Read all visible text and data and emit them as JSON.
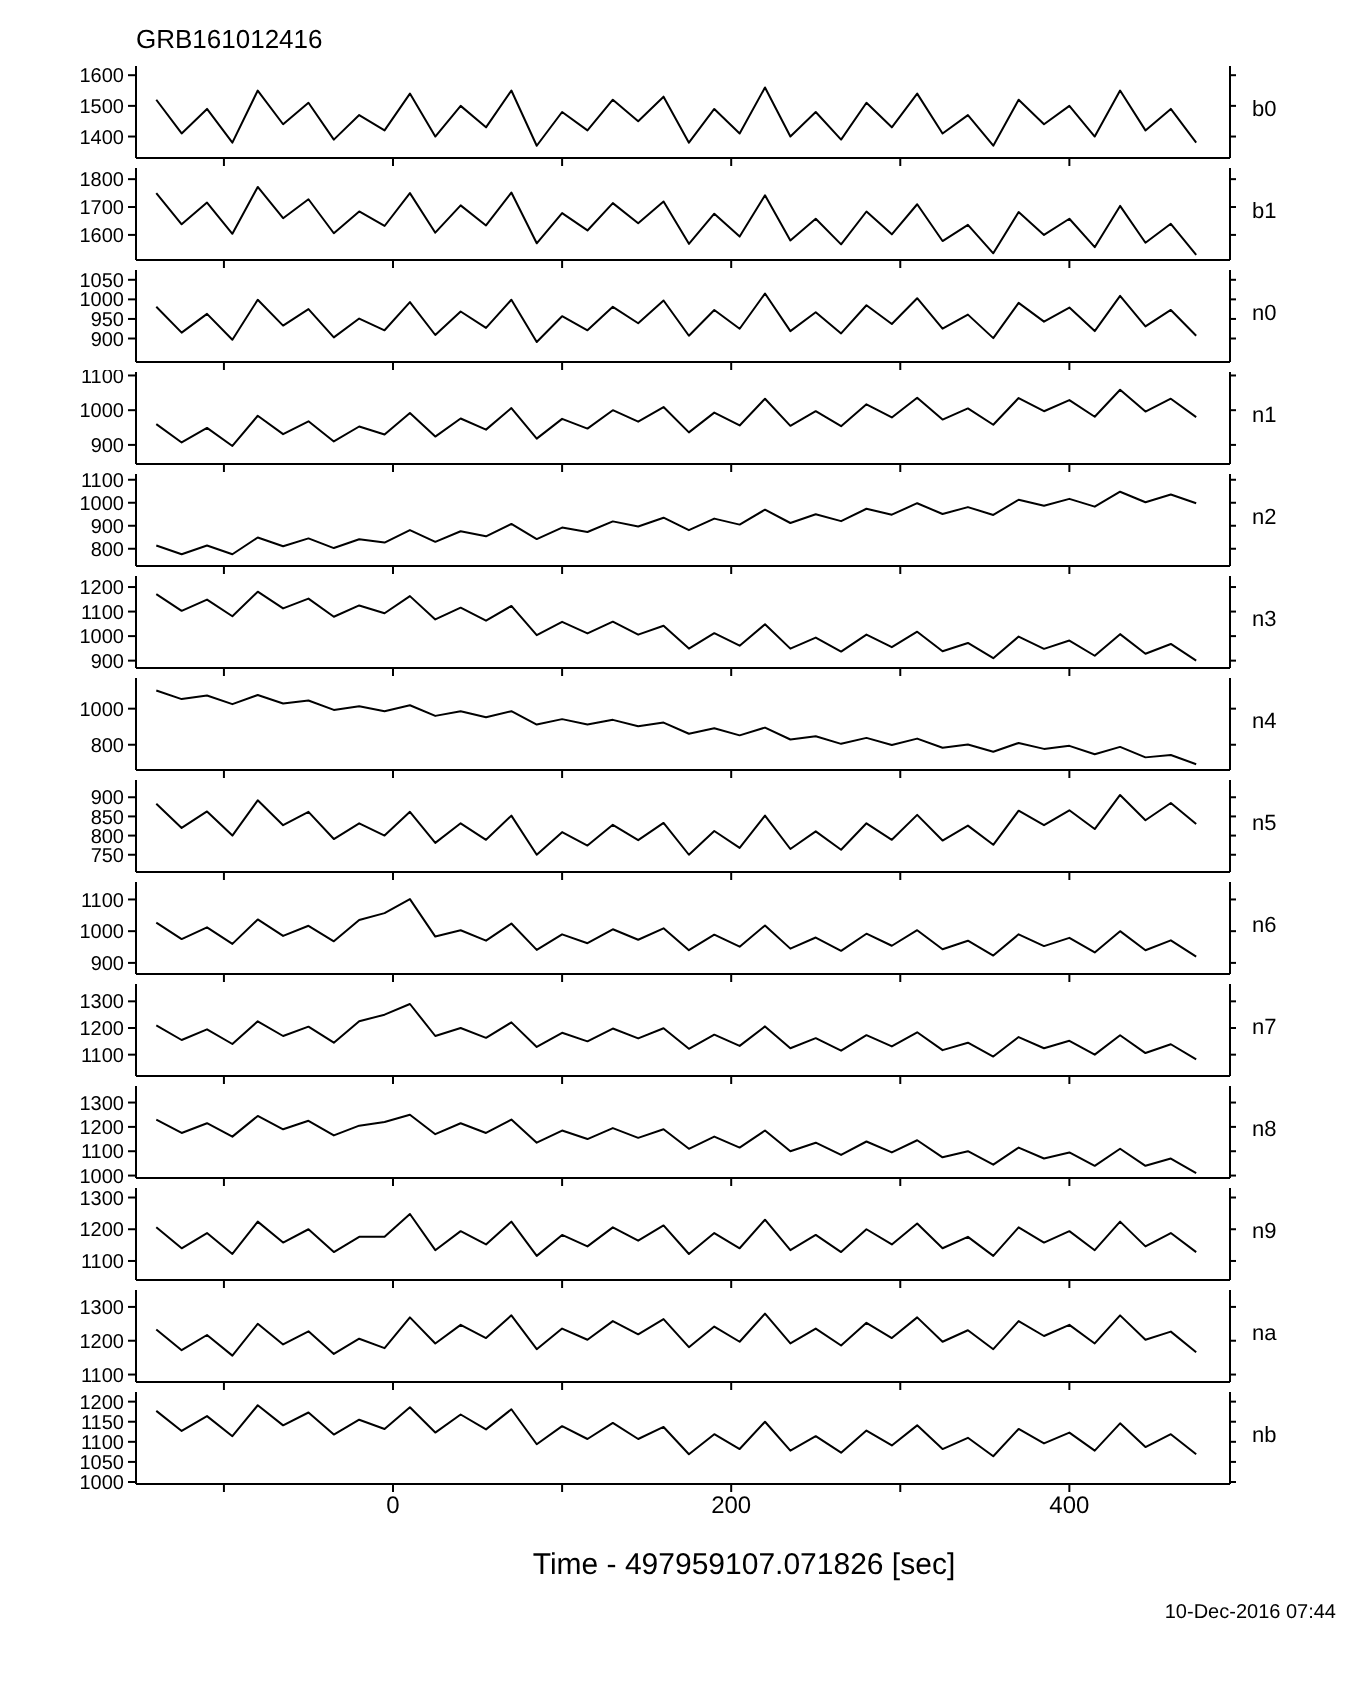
{
  "chart_data": [
    {
      "type": "line",
      "title": "GRB161012416",
      "x": [
        -140,
        -125,
        -110,
        -95,
        -80,
        -65,
        -50,
        -35,
        -20,
        -5,
        10,
        25,
        40,
        55,
        70,
        85,
        100,
        115,
        130,
        145,
        160,
        175,
        190,
        205,
        220,
        235,
        250,
        265,
        280,
        295,
        310,
        325,
        340,
        355,
        370,
        385,
        400,
        415,
        430,
        445,
        460,
        475
      ],
      "xlim": [
        -152,
        495
      ],
      "xticks": [
        {
          "value": -100,
          "label": null
        },
        0,
        {
          "value": 100,
          "label": null
        },
        200,
        {
          "value": 300,
          "label": null
        },
        400
      ],
      "ylim": [
        1330,
        1630
      ],
      "yticks": [
        1400,
        1500,
        1600
      ],
      "tick_labels": "y",
      "series": [
        {
          "name": "b0",
          "color": "#000000",
          "values": [
            1520,
            1410,
            1490,
            1380,
            1550,
            1440,
            1510,
            1390,
            1470,
            1420,
            1540,
            1400,
            1500,
            1430,
            1550,
            1370,
            1480,
            1420,
            1520,
            1450,
            1530,
            1380,
            1490,
            1410,
            1560,
            1400,
            1480,
            1390,
            1510,
            1430,
            1540,
            1410,
            1470,
            1370,
            1520,
            1440,
            1500,
            1400,
            1550,
            1420,
            1490,
            1380
          ]
        }
      ]
    },
    {
      "type": "line",
      "x": [
        -140,
        -125,
        -110,
        -95,
        -80,
        -65,
        -50,
        -35,
        -20,
        -5,
        10,
        25,
        40,
        55,
        70,
        85,
        100,
        115,
        130,
        145,
        160,
        175,
        190,
        205,
        220,
        235,
        250,
        265,
        280,
        295,
        310,
        325,
        340,
        355,
        370,
        385,
        400,
        415,
        430,
        445,
        460,
        475
      ],
      "xlim": [
        -152,
        495
      ],
      "xticks": [
        {
          "value": -100,
          "label": null
        },
        0,
        {
          "value": 100,
          "label": null
        },
        200,
        {
          "value": 300,
          "label": null
        },
        400
      ],
      "ylim": [
        1510,
        1840
      ],
      "yticks": [
        1600,
        1700,
        1800
      ],
      "tick_labels": "y",
      "series": [
        {
          "name": "b1",
          "color": "#000000",
          "values": [
            1750,
            1638,
            1716,
            1604,
            1772,
            1660,
            1728,
            1606,
            1684,
            1632,
            1750,
            1608,
            1706,
            1634,
            1752,
            1570,
            1678,
            1616,
            1714,
            1642,
            1720,
            1568,
            1676,
            1594,
            1742,
            1580,
            1658,
            1566,
            1684,
            1602,
            1710,
            1578,
            1636,
            1534,
            1682,
            1600,
            1658,
            1556,
            1704,
            1572,
            1640,
            1528
          ]
        }
      ]
    },
    {
      "type": "line",
      "x": [
        -140,
        -125,
        -110,
        -95,
        -80,
        -65,
        -50,
        -35,
        -20,
        -5,
        10,
        25,
        40,
        55,
        70,
        85,
        100,
        115,
        130,
        145,
        160,
        175,
        190,
        205,
        220,
        235,
        250,
        265,
        280,
        295,
        310,
        325,
        340,
        355,
        370,
        385,
        400,
        415,
        430,
        445,
        460,
        475
      ],
      "xlim": [
        -152,
        495
      ],
      "xticks": [
        {
          "value": -100,
          "label": null
        },
        0,
        {
          "value": 100,
          "label": null
        },
        200,
        {
          "value": 300,
          "label": null
        },
        400
      ],
      "ylim": [
        840,
        1075
      ],
      "yticks": [
        900,
        950,
        1000,
        1050
      ],
      "tick_labels": "y",
      "series": [
        {
          "name": "n0",
          "color": "#000000",
          "values": [
            981,
            915,
            963,
            897,
            999,
            933,
            975,
            903,
            951,
            921,
            993,
            909,
            969,
            927,
            999,
            891,
            957,
            921,
            981,
            939,
            997,
            907,
            973,
            925,
            1015,
            919,
            967,
            913,
            985,
            937,
            1003,
            925,
            961,
            901,
            991,
            943,
            979,
            919,
            1009,
            931,
            973,
            907
          ]
        }
      ]
    },
    {
      "type": "line",
      "x": [
        -140,
        -125,
        -110,
        -95,
        -80,
        -65,
        -50,
        -35,
        -20,
        -5,
        10,
        25,
        40,
        55,
        70,
        85,
        100,
        115,
        130,
        145,
        160,
        175,
        190,
        205,
        220,
        235,
        250,
        265,
        280,
        295,
        310,
        325,
        340,
        355,
        370,
        385,
        400,
        415,
        430,
        445,
        460,
        475
      ],
      "xlim": [
        -152,
        495
      ],
      "xticks": [
        {
          "value": -100,
          "label": null
        },
        0,
        {
          "value": 100,
          "label": null
        },
        200,
        {
          "value": 300,
          "label": null
        },
        400
      ],
      "ylim": [
        845,
        1110
      ],
      "yticks": [
        900,
        1000,
        1100
      ],
      "tick_labels": "y",
      "series": [
        {
          "name": "n1",
          "color": "#000000",
          "values": [
            960,
            907,
            949,
            897,
            984,
            931,
            968,
            910,
            953,
            930,
            992,
            924,
            976,
            944,
            1006,
            918,
            975,
            947,
            1000,
            967,
            1009,
            936,
            993,
            956,
            1033,
            955,
            997,
            954,
            1017,
            979,
            1036,
            973,
            1005,
            958,
            1035,
            997,
            1029,
            981,
            1059,
            996,
            1033,
            980
          ]
        }
      ]
    },
    {
      "type": "line",
      "x": [
        -140,
        -125,
        -110,
        -95,
        -80,
        -65,
        -50,
        -35,
        -20,
        -5,
        10,
        25,
        40,
        55,
        70,
        85,
        100,
        115,
        130,
        145,
        160,
        175,
        190,
        205,
        220,
        235,
        250,
        265,
        280,
        295,
        310,
        325,
        340,
        355,
        370,
        385,
        400,
        415,
        430,
        445,
        460,
        475
      ],
      "xlim": [
        -152,
        495
      ],
      "xticks": [
        {
          "value": -100,
          "label": null
        },
        0,
        {
          "value": 100,
          "label": null
        },
        200,
        {
          "value": 300,
          "label": null
        },
        400
      ],
      "ylim": [
        725,
        1125
      ],
      "yticks": [
        800,
        900,
        1000,
        1100
      ],
      "tick_labels": "y",
      "series": [
        {
          "name": "n2",
          "color": "#000000",
          "values": [
            814,
            776,
            814,
            776,
            849,
            811,
            845,
            803,
            841,
            827,
            881,
            830,
            876,
            854,
            908,
            842,
            892,
            873,
            919,
            897,
            935,
            881,
            931,
            905,
            970,
            912,
            950,
            920,
            974,
            948,
            998,
            951,
            981,
            947,
            1013,
            987,
            1017,
            983,
            1048,
            1002,
            1036,
            998
          ]
        }
      ]
    },
    {
      "type": "line",
      "x": [
        -140,
        -125,
        -110,
        -95,
        -80,
        -65,
        -50,
        -35,
        -20,
        -5,
        10,
        25,
        40,
        55,
        70,
        85,
        100,
        115,
        130,
        145,
        160,
        175,
        190,
        205,
        220,
        235,
        250,
        265,
        280,
        295,
        310,
        325,
        340,
        355,
        370,
        385,
        400,
        415,
        430,
        445,
        460,
        475
      ],
      "xlim": [
        -152,
        495
      ],
      "xticks": [
        {
          "value": -100,
          "label": null
        },
        0,
        {
          "value": 100,
          "label": null
        },
        200,
        {
          "value": 300,
          "label": null
        },
        400
      ],
      "ylim": [
        870,
        1245
      ],
      "yticks": [
        900,
        1000,
        1100,
        1200
      ],
      "tick_labels": "y",
      "series": [
        {
          "name": "n3",
          "color": "#000000",
          "values": [
            1171,
            1103,
            1149,
            1081,
            1181,
            1113,
            1153,
            1079,
            1125,
            1093,
            1163,
            1068,
            1116,
            1063,
            1123,
            1004,
            1058,
            1011,
            1059,
            1006,
            1042,
            949,
            1012,
            961,
            1048,
            949,
            994,
            937,
            1006,
            955,
            1018,
            938,
            972,
            910,
            998,
            948,
            982,
            920,
            1008,
            928,
            968,
            900
          ]
        }
      ]
    },
    {
      "type": "line",
      "x": [
        -140,
        -125,
        -110,
        -95,
        -80,
        -65,
        -50,
        -35,
        -20,
        -5,
        10,
        25,
        40,
        55,
        70,
        85,
        100,
        115,
        130,
        145,
        160,
        175,
        190,
        205,
        220,
        235,
        250,
        265,
        280,
        295,
        310,
        325,
        340,
        355,
        370,
        385,
        400,
        415,
        430,
        445,
        460,
        475
      ],
      "xlim": [
        -152,
        495
      ],
      "xticks": [
        {
          "value": -100,
          "label": null
        },
        0,
        {
          "value": 100,
          "label": null
        },
        200,
        {
          "value": 300,
          "label": null
        },
        400
      ],
      "ylim": [
        660,
        1170
      ],
      "yticks": [
        800,
        1000
      ],
      "tick_labels": "y",
      "series": [
        {
          "name": "n4",
          "color": "#000000",
          "values": [
            1101,
            1053,
            1073,
            1025,
            1076,
            1029,
            1045,
            993,
            1013,
            986,
            1019,
            960,
            986,
            952,
            986,
            912,
            942,
            912,
            938,
            903,
            923,
            861,
            891,
            852,
            895,
            829,
            847,
            805,
            838,
            799,
            834,
            783,
            801,
            761,
            810,
            777,
            794,
            747,
            788,
            730,
            743,
            692
          ]
        }
      ]
    },
    {
      "type": "line",
      "x": [
        -140,
        -125,
        -110,
        -95,
        -80,
        -65,
        -50,
        -35,
        -20,
        -5,
        10,
        25,
        40,
        55,
        70,
        85,
        100,
        115,
        130,
        145,
        160,
        175,
        190,
        205,
        220,
        235,
        250,
        265,
        280,
        295,
        310,
        325,
        340,
        355,
        370,
        385,
        400,
        415,
        430,
        445,
        460,
        475
      ],
      "xlim": [
        -152,
        495
      ],
      "xticks": [
        {
          "value": -100,
          "label": null
        },
        0,
        {
          "value": 100,
          "label": null
        },
        200,
        {
          "value": 300,
          "label": null
        },
        400
      ],
      "ylim": [
        705,
        945
      ],
      "yticks": [
        750,
        800,
        850,
        900
      ],
      "tick_labels": "y",
      "series": [
        {
          "name": "n5",
          "color": "#000000",
          "values": [
            883,
            820,
            863,
            800,
            892,
            827,
            862,
            791,
            832,
            800,
            862,
            781,
            832,
            789,
            852,
            750,
            809,
            774,
            828,
            788,
            833,
            750,
            812,
            768,
            852,
            765,
            811,
            763,
            832,
            789,
            854,
            787,
            826,
            776,
            865,
            827,
            866,
            817,
            906,
            840,
            885,
            830
          ]
        }
      ]
    },
    {
      "type": "line",
      "x": [
        -140,
        -125,
        -110,
        -95,
        -80,
        -65,
        -50,
        -35,
        -20,
        -5,
        10,
        25,
        40,
        55,
        70,
        85,
        100,
        115,
        130,
        145,
        160,
        175,
        190,
        205,
        220,
        235,
        250,
        265,
        280,
        295,
        310,
        325,
        340,
        355,
        370,
        385,
        400,
        415,
        430,
        445,
        460,
        475
      ],
      "xlim": [
        -152,
        495
      ],
      "xticks": [
        {
          "value": -100,
          "label": null
        },
        0,
        {
          "value": 100,
          "label": null
        },
        200,
        {
          "value": 300,
          "label": null
        },
        400
      ],
      "ylim": [
        865,
        1155
      ],
      "yticks": [
        900,
        1000,
        1100
      ],
      "tick_labels": "y",
      "series": [
        {
          "name": "n6",
          "color": "#000000",
          "values": [
            1027,
            975,
            1012,
            960,
            1037,
            985,
            1017,
            968,
            1035,
            1057,
            1101,
            983,
            1003,
            970,
            1024,
            941,
            990,
            962,
            1006,
            973,
            1009,
            940,
            989,
            951,
            1018,
            945,
            980,
            938,
            992,
            954,
            1003,
            943,
            970,
            923,
            990,
            953,
            979,
            933,
            1000,
            940,
            971,
            920
          ]
        }
      ]
    },
    {
      "type": "line",
      "x": [
        -140,
        -125,
        -110,
        -95,
        -80,
        -65,
        -50,
        -35,
        -20,
        -5,
        10,
        25,
        40,
        55,
        70,
        85,
        100,
        115,
        130,
        145,
        160,
        175,
        190,
        205,
        220,
        235,
        250,
        265,
        280,
        295,
        310,
        325,
        340,
        355,
        370,
        385,
        400,
        415,
        430,
        445,
        460,
        475
      ],
      "xlim": [
        -152,
        495
      ],
      "xticks": [
        {
          "value": -100,
          "label": null
        },
        0,
        {
          "value": 100,
          "label": null
        },
        200,
        {
          "value": 300,
          "label": null
        },
        400
      ],
      "ylim": [
        1020,
        1365
      ],
      "yticks": [
        1100,
        1200,
        1300
      ],
      "tick_labels": "y",
      "series": [
        {
          "name": "n7",
          "color": "#000000",
          "values": [
            1210,
            1155,
            1195,
            1140,
            1225,
            1170,
            1205,
            1145,
            1225,
            1250,
            1290,
            1170,
            1200,
            1163,
            1221,
            1129,
            1182,
            1150,
            1198,
            1161,
            1199,
            1122,
            1175,
            1133,
            1206,
            1124,
            1162,
            1115,
            1173,
            1131,
            1184,
            1117,
            1145,
            1093,
            1166,
            1124,
            1152,
            1100,
            1173,
            1106,
            1139,
            1082
          ]
        }
      ]
    },
    {
      "type": "line",
      "x": [
        -140,
        -125,
        -110,
        -95,
        -80,
        -65,
        -50,
        -35,
        -20,
        -5,
        10,
        25,
        40,
        55,
        70,
        85,
        100,
        115,
        130,
        145,
        160,
        175,
        190,
        205,
        220,
        235,
        250,
        265,
        280,
        295,
        310,
        325,
        340,
        355,
        370,
        385,
        400,
        415,
        430,
        445,
        460,
        475
      ],
      "xlim": [
        -152,
        495
      ],
      "xticks": [
        {
          "value": -100,
          "label": null
        },
        0,
        {
          "value": 100,
          "label": null
        },
        200,
        {
          "value": 300,
          "label": null
        },
        400
      ],
      "ylim": [
        990,
        1368
      ],
      "yticks": [
        1000,
        1100,
        1200,
        1300
      ],
      "tick_labels": "y",
      "series": [
        {
          "name": "n8",
          "color": "#000000",
          "values": [
            1230,
            1175,
            1215,
            1160,
            1245,
            1190,
            1225,
            1165,
            1205,
            1220,
            1250,
            1170,
            1215,
            1175,
            1230,
            1135,
            1185,
            1150,
            1195,
            1155,
            1190,
            1110,
            1160,
            1115,
            1185,
            1100,
            1135,
            1085,
            1140,
            1095,
            1145,
            1075,
            1100,
            1045,
            1115,
            1070,
            1095,
            1040,
            1110,
            1040,
            1070,
            1010
          ]
        }
      ]
    },
    {
      "type": "line",
      "x": [
        -140,
        -125,
        -110,
        -95,
        -80,
        -65,
        -50,
        -35,
        -20,
        -5,
        10,
        25,
        40,
        55,
        70,
        85,
        100,
        115,
        130,
        145,
        160,
        175,
        190,
        205,
        220,
        235,
        250,
        265,
        280,
        295,
        310,
        325,
        340,
        355,
        370,
        385,
        400,
        415,
        430,
        445,
        460,
        475
      ],
      "xlim": [
        -152,
        495
      ],
      "xticks": [
        {
          "value": -100,
          "label": null
        },
        0,
        {
          "value": 100,
          "label": null
        },
        200,
        {
          "value": 300,
          "label": null
        },
        400
      ],
      "ylim": [
        1040,
        1330
      ],
      "yticks": [
        1100,
        1200,
        1300
      ],
      "tick_labels": "y",
      "series": [
        {
          "name": "n9",
          "color": "#000000",
          "values": [
            1206,
            1140,
            1188,
            1122,
            1224,
            1158,
            1200,
            1128,
            1176,
            1176,
            1248,
            1134,
            1194,
            1152,
            1224,
            1116,
            1182,
            1146,
            1206,
            1164,
            1212,
            1122,
            1188,
            1140,
            1230,
            1134,
            1182,
            1128,
            1200,
            1152,
            1218,
            1140,
            1176,
            1116,
            1206,
            1158,
            1194,
            1134,
            1224,
            1146,
            1188,
            1128
          ]
        }
      ]
    },
    {
      "type": "line",
      "x": [
        -140,
        -125,
        -110,
        -95,
        -80,
        -65,
        -50,
        -35,
        -20,
        -5,
        10,
        25,
        40,
        55,
        70,
        85,
        100,
        115,
        130,
        145,
        160,
        175,
        190,
        205,
        220,
        235,
        250,
        265,
        280,
        295,
        310,
        325,
        340,
        355,
        370,
        385,
        400,
        415,
        430,
        445,
        460,
        475
      ],
      "xlim": [
        -152,
        495
      ],
      "xticks": [
        {
          "value": -100,
          "label": null
        },
        0,
        {
          "value": 100,
          "label": null
        },
        200,
        {
          "value": 300,
          "label": null
        },
        400
      ],
      "ylim": [
        1078,
        1350
      ],
      "yticks": [
        1100,
        1200,
        1300
      ],
      "tick_labels": "y",
      "series": [
        {
          "name": "na",
          "color": "#000000",
          "values": [
            1233,
            1172,
            1217,
            1156,
            1250,
            1189,
            1228,
            1161,
            1206,
            1178,
            1269,
            1192,
            1247,
            1208,
            1275,
            1175,
            1236,
            1203,
            1258,
            1219,
            1264,
            1181,
            1242,
            1197,
            1280,
            1192,
            1236,
            1186,
            1253,
            1208,
            1269,
            1197,
            1231,
            1175,
            1258,
            1214,
            1247,
            1192,
            1275,
            1203,
            1227,
            1166
          ]
        }
      ]
    },
    {
      "type": "line",
      "xlabel": "Time - 497959107.071826 [sec]",
      "annotations": [
        "10-Dec-2016 07:44"
      ],
      "x": [
        -140,
        -125,
        -110,
        -95,
        -80,
        -65,
        -50,
        -35,
        -20,
        -5,
        10,
        25,
        40,
        55,
        70,
        85,
        100,
        115,
        130,
        145,
        160,
        175,
        190,
        205,
        220,
        235,
        250,
        265,
        280,
        295,
        310,
        325,
        340,
        355,
        370,
        385,
        400,
        415,
        430,
        445,
        460,
        475
      ],
      "xlim": [
        -152,
        495
      ],
      "xticks": [
        {
          "value": -100,
          "label": null
        },
        0,
        {
          "value": 100,
          "label": null
        },
        200,
        {
          "value": 300,
          "label": null
        },
        400
      ],
      "ylim": [
        995,
        1224
      ],
      "yticks": [
        1000,
        1050,
        1100,
        1150,
        1200
      ],
      "series": [
        {
          "name": "nb",
          "color": "#000000",
          "values": [
            1177,
            1127,
            1164,
            1114,
            1191,
            1141,
            1173,
            1118,
            1155,
            1132,
            1186,
            1123,
            1168,
            1131,
            1181,
            1094,
            1139,
            1107,
            1147,
            1107,
            1137,
            1069,
            1119,
            1082,
            1150,
            1078,
            1114,
            1073,
            1128,
            1091,
            1141,
            1082,
            1110,
            1064,
            1132,
            1096,
            1123,
            1078,
            1146,
            1087,
            1119,
            1069
          ]
        }
      ]
    }
  ]
}
